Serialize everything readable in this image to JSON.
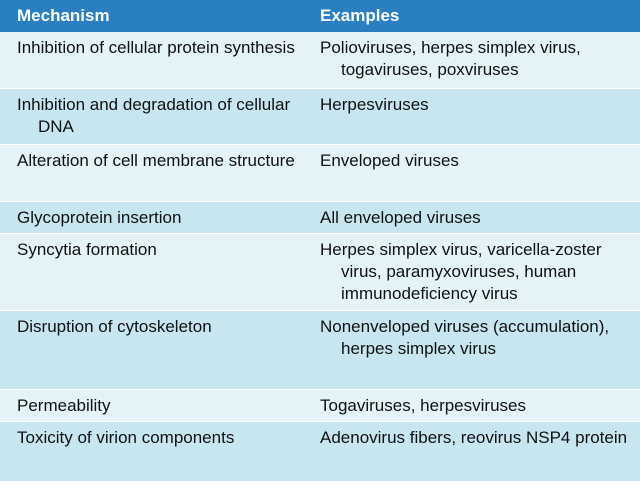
{
  "table": {
    "headers": {
      "mechanism": "Mechanism",
      "examples": "Examples"
    },
    "rows": [
      {
        "mechanism": "Inhibition of cellular protein synthesis",
        "examples": "Polioviruses, herpes simplex virus, togaviruses, poxviruses"
      },
      {
        "mechanism": "Inhibition and degradation of cellular DNA",
        "examples": "Herpesviruses"
      },
      {
        "mechanism": "Alteration of cell membrane structure",
        "examples": "Enveloped viruses"
      },
      {
        "mechanism": "Glycoprotein insertion",
        "examples": "All enveloped viruses"
      },
      {
        "mechanism": "Syncytia formation",
        "examples": "Herpes simplex virus, varicella-zoster virus, paramyxoviruses, human immunodeficiency virus"
      },
      {
        "mechanism": "Disruption of cytoskeleton",
        "examples": "Nonenveloped viruses (accumulation), herpes simplex virus"
      },
      {
        "mechanism": "Permeability",
        "examples": "Togaviruses, herpesviruses"
      },
      {
        "mechanism": "Toxicity of virion components",
        "examples": "Adenovirus fibers, reovirus NSP4 protein"
      }
    ]
  },
  "colors": {
    "header_bg": "#2a7fc0",
    "row_light": "#e3f3f8",
    "row_dark": "#c8e6f0"
  }
}
